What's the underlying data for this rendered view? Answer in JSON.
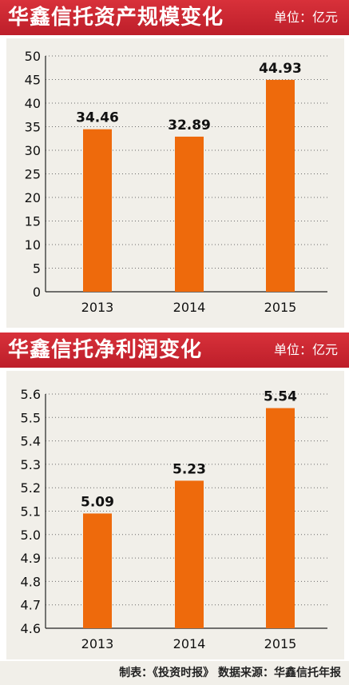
{
  "colors": {
    "banner": "#c9252f",
    "bar": "#ee6a0c",
    "panel_bg": "#f1efe9",
    "gridline": "#6b6b6b",
    "text": "#111111"
  },
  "chart_data": [
    {
      "type": "bar",
      "title": "华鑫信托资产规模变化",
      "unit": "单位：亿元",
      "categories": [
        "2013",
        "2014",
        "2015"
      ],
      "values": [
        34.46,
        32.89,
        44.93
      ],
      "value_labels": [
        "34.46",
        "32.89",
        "44.93"
      ],
      "ylim": [
        0,
        50
      ],
      "yticks": [
        0,
        5,
        10,
        15,
        20,
        25,
        30,
        35,
        40,
        45,
        50
      ],
      "ytick_labels": [
        "0",
        "5",
        "10",
        "15",
        "20",
        "25",
        "30",
        "35",
        "40",
        "45",
        "50"
      ],
      "grid": true,
      "xlabel": "",
      "ylabel": ""
    },
    {
      "type": "bar",
      "title": "华鑫信托净利润变化",
      "unit": "单位：亿元",
      "categories": [
        "2013",
        "2014",
        "2015"
      ],
      "values": [
        5.09,
        5.23,
        5.54
      ],
      "value_labels": [
        "5.09",
        "5.23",
        "5.54"
      ],
      "ylim": [
        4.6,
        5.6
      ],
      "yticks": [
        4.6,
        4.7,
        4.8,
        4.9,
        5.0,
        5.1,
        5.2,
        5.3,
        5.4,
        5.5,
        5.6
      ],
      "ytick_labels": [
        "4.6",
        "4.7",
        "4.8",
        "4.9",
        "5.0",
        "5.1",
        "5.2",
        "5.3",
        "5.4",
        "5.5",
        "5.6"
      ],
      "grid": true,
      "xlabel": "",
      "ylabel": ""
    }
  ],
  "footer": {
    "credit": "制表：《投资时报》  数据来源：华鑫信托年报"
  }
}
